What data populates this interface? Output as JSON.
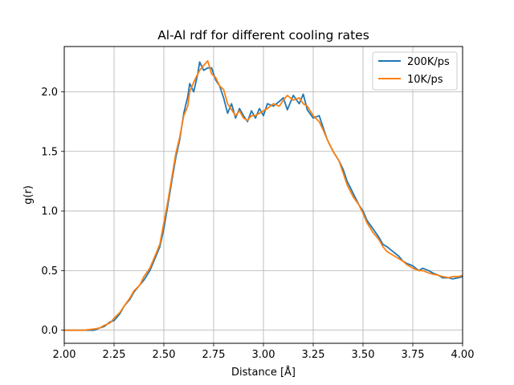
{
  "chart_data": {
    "type": "line",
    "title": "Al-Al rdf for different cooling rates",
    "xlabel": "Distance [Å]",
    "ylabel": "g(r)",
    "xlim": [
      2.0,
      4.0
    ],
    "ylim": [
      -0.11,
      2.38
    ],
    "xticks": [
      2.0,
      2.25,
      2.5,
      2.75,
      3.0,
      3.25,
      3.5,
      3.75,
      4.0
    ],
    "xtick_labels": [
      "2.00",
      "2.25",
      "2.50",
      "2.75",
      "3.00",
      "3.25",
      "3.50",
      "3.75",
      "4.00"
    ],
    "yticks": [
      0.0,
      0.5,
      1.0,
      1.5,
      2.0
    ],
    "ytick_labels": [
      "0.0",
      "0.5",
      "1.0",
      "1.5",
      "2.0"
    ],
    "grid": true,
    "legend_position": "top-right",
    "series": [
      {
        "name": "200K/ps",
        "color": "#1f77b4",
        "x": [
          2.0,
          2.05,
          2.1,
          2.15,
          2.18,
          2.2,
          2.23,
          2.25,
          2.28,
          2.3,
          2.33,
          2.35,
          2.38,
          2.4,
          2.43,
          2.45,
          2.48,
          2.5,
          2.52,
          2.54,
          2.56,
          2.58,
          2.6,
          2.62,
          2.63,
          2.65,
          2.67,
          2.68,
          2.7,
          2.72,
          2.74,
          2.76,
          2.78,
          2.8,
          2.82,
          2.84,
          2.86,
          2.88,
          2.9,
          2.92,
          2.94,
          2.96,
          2.98,
          3.0,
          3.02,
          3.05,
          3.08,
          3.1,
          3.12,
          3.15,
          3.18,
          3.2,
          3.22,
          3.25,
          3.28,
          3.3,
          3.32,
          3.35,
          3.38,
          3.4,
          3.42,
          3.45,
          3.48,
          3.5,
          3.52,
          3.55,
          3.58,
          3.6,
          3.62,
          3.65,
          3.68,
          3.7,
          3.72,
          3.75,
          3.78,
          3.8,
          3.83,
          3.85,
          3.88,
          3.9,
          3.93,
          3.95,
          3.98,
          4.0
        ],
        "y": [
          0.0,
          0.0,
          0.0,
          0.0,
          0.02,
          0.03,
          0.07,
          0.08,
          0.14,
          0.2,
          0.26,
          0.32,
          0.38,
          0.42,
          0.5,
          0.58,
          0.7,
          0.85,
          1.05,
          1.25,
          1.45,
          1.6,
          1.82,
          1.96,
          2.07,
          2.0,
          2.15,
          2.25,
          2.18,
          2.2,
          2.2,
          2.1,
          2.05,
          1.95,
          1.82,
          1.9,
          1.78,
          1.86,
          1.8,
          1.75,
          1.84,
          1.78,
          1.86,
          1.8,
          1.9,
          1.88,
          1.92,
          1.95,
          1.85,
          1.97,
          1.9,
          1.98,
          1.85,
          1.78,
          1.8,
          1.7,
          1.6,
          1.5,
          1.42,
          1.35,
          1.25,
          1.15,
          1.05,
          1.0,
          0.92,
          0.85,
          0.78,
          0.72,
          0.7,
          0.66,
          0.62,
          0.58,
          0.56,
          0.54,
          0.5,
          0.52,
          0.5,
          0.48,
          0.46,
          0.44,
          0.44,
          0.43,
          0.44,
          0.45
        ]
      },
      {
        "name": "10K/ps",
        "color": "#ff7f0e",
        "x": [
          2.0,
          2.05,
          2.1,
          2.15,
          2.18,
          2.2,
          2.23,
          2.25,
          2.28,
          2.3,
          2.33,
          2.35,
          2.38,
          2.4,
          2.43,
          2.45,
          2.48,
          2.5,
          2.52,
          2.54,
          2.56,
          2.58,
          2.6,
          2.62,
          2.63,
          2.65,
          2.67,
          2.68,
          2.7,
          2.72,
          2.74,
          2.76,
          2.78,
          2.8,
          2.82,
          2.84,
          2.86,
          2.88,
          2.9,
          2.92,
          2.94,
          2.96,
          2.98,
          3.0,
          3.02,
          3.05,
          3.08,
          3.1,
          3.12,
          3.15,
          3.18,
          3.2,
          3.22,
          3.25,
          3.28,
          3.3,
          3.32,
          3.35,
          3.38,
          3.4,
          3.42,
          3.45,
          3.48,
          3.5,
          3.52,
          3.55,
          3.58,
          3.6,
          3.62,
          3.65,
          3.68,
          3.7,
          3.72,
          3.75,
          3.78,
          3.8,
          3.83,
          3.85,
          3.88,
          3.9,
          3.93,
          3.95,
          3.98,
          4.0
        ],
        "y": [
          0.0,
          0.0,
          0.0,
          0.01,
          0.02,
          0.04,
          0.06,
          0.1,
          0.15,
          0.2,
          0.27,
          0.33,
          0.38,
          0.45,
          0.52,
          0.6,
          0.72,
          0.9,
          1.08,
          1.28,
          1.48,
          1.62,
          1.8,
          1.88,
          2.0,
          2.08,
          2.15,
          2.18,
          2.22,
          2.26,
          2.15,
          2.12,
          2.05,
          2.02,
          1.9,
          1.85,
          1.8,
          1.84,
          1.78,
          1.76,
          1.8,
          1.8,
          1.82,
          1.84,
          1.86,
          1.9,
          1.88,
          1.93,
          1.97,
          1.93,
          1.95,
          1.9,
          1.88,
          1.8,
          1.75,
          1.68,
          1.6,
          1.5,
          1.42,
          1.32,
          1.22,
          1.12,
          1.05,
          0.98,
          0.9,
          0.82,
          0.76,
          0.7,
          0.66,
          0.63,
          0.6,
          0.58,
          0.55,
          0.52,
          0.5,
          0.5,
          0.48,
          0.47,
          0.46,
          0.45,
          0.44,
          0.45,
          0.45,
          0.46
        ]
      }
    ]
  }
}
